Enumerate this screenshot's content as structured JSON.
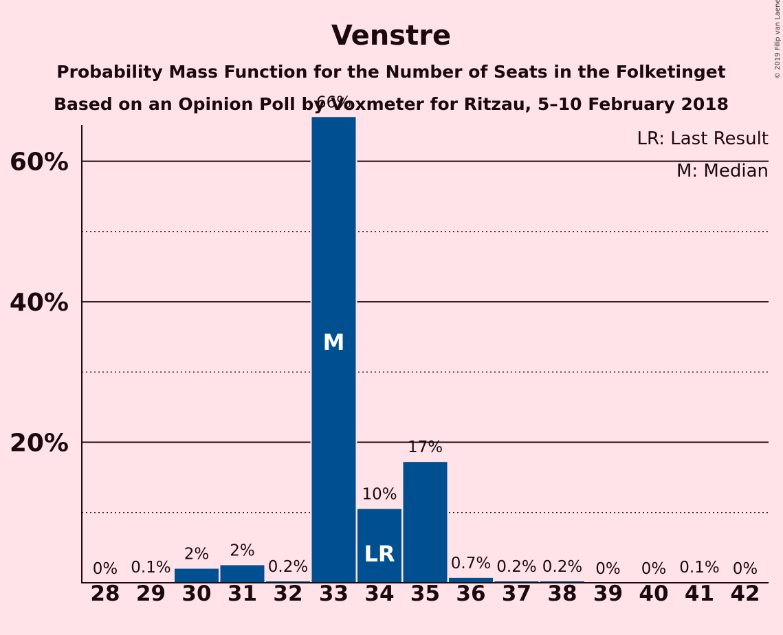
{
  "chart_data": {
    "type": "bar",
    "title": "Venstre",
    "subtitle_1": "Probability Mass Function for the Number of Seats in the Folketinget",
    "subtitle_2": "Based on an Opinion Poll by Voxmeter for Ritzau, 5–10 February 2018",
    "copyright": "© 2019 Filip van Laenen",
    "legend": [
      "LR: Last Result",
      "M: Median"
    ],
    "legend_position": "top-right",
    "categories": [
      "28",
      "29",
      "30",
      "31",
      "32",
      "33",
      "34",
      "35",
      "36",
      "37",
      "38",
      "39",
      "40",
      "41",
      "42"
    ],
    "values": [
      0,
      0.1,
      2,
      2.5,
      0.2,
      66.3,
      10.5,
      17.2,
      0.7,
      0.2,
      0.2,
      0,
      0,
      0.1,
      0
    ],
    "value_labels": [
      "0%",
      "0.1%",
      "2%",
      "2%",
      "0.2%",
      "66%",
      "10%",
      "17%",
      "0.7%",
      "0.2%",
      "0.2%",
      "0%",
      "0%",
      "0.1%",
      "0%"
    ],
    "bar_markers": {
      "33": "M",
      "34": "LR"
    },
    "yticks": [
      20,
      40,
      60
    ],
    "ytick_labels": [
      "20%",
      "40%",
      "60%"
    ],
    "minor_gridlines": [
      10,
      30,
      50
    ],
    "ylim": [
      0,
      72
    ],
    "bar_color": "#004f91",
    "grid": true
  }
}
